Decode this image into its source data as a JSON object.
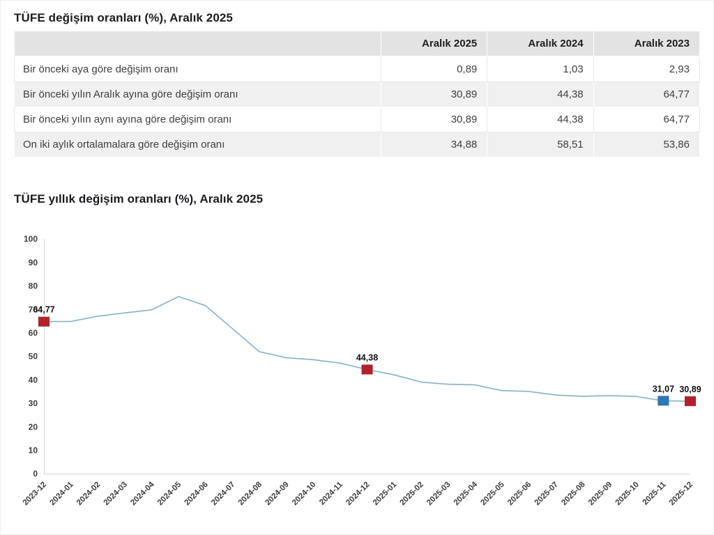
{
  "page": {
    "table_section_title": "TÜFE değişim oranları (%), Aralık 2025",
    "chart_section_title": "TÜFE yıllık değişim oranları (%), Aralık 2025"
  },
  "table": {
    "columns": [
      "",
      "Aralık 2025",
      "Aralık 2024",
      "Aralık 2023"
    ],
    "rows": [
      {
        "label": "Bir önceki aya göre değişim oranı",
        "values": [
          "0,89",
          "1,03",
          "2,93"
        ]
      },
      {
        "label": "Bir önceki yılın Aralık ayına göre değişim oranı",
        "values": [
          "30,89",
          "44,38",
          "64,77"
        ]
      },
      {
        "label": "Bir önceki yılın aynı ayına göre değişim oranı",
        "values": [
          "30,89",
          "44,38",
          "64,77"
        ]
      },
      {
        "label": "On iki aylık ortalamalara göre değişim oranı",
        "values": [
          "34,88",
          "58,51",
          "53,86"
        ]
      }
    ]
  },
  "chart_data": {
    "type": "line",
    "title": "TÜFE yıllık değişim oranları (%), Aralık 2025",
    "xlabel": "",
    "ylabel": "",
    "ylim": [
      0,
      100
    ],
    "ytick_step": 10,
    "grid": false,
    "legend": "none",
    "line_color": "#82b1d8",
    "x": [
      "2023-12",
      "2024-01",
      "2024-02",
      "2024-03",
      "2024-04",
      "2024-05",
      "2024-06",
      "2024-07",
      "2024-08",
      "2024-09",
      "2024-10",
      "2024-11",
      "2024-12",
      "2025-01",
      "2025-02",
      "2025-03",
      "2025-04",
      "2025-05",
      "2025-06",
      "2025-07",
      "2025-08",
      "2025-09",
      "2025-10",
      "2025-11",
      "2025-12"
    ],
    "values": [
      64.77,
      64.86,
      67.07,
      68.5,
      69.8,
      75.45,
      71.6,
      61.78,
      51.97,
      49.38,
      48.58,
      47.09,
      44.38,
      42.12,
      39.05,
      38.1,
      37.86,
      35.41,
      35.05,
      33.52,
      32.95,
      33.29,
      32.87,
      31.07,
      30.89
    ],
    "annotations": [
      {
        "x": "2023-12",
        "label": "64,77",
        "marker_color": "#b51f29"
      },
      {
        "x": "2024-12",
        "label": "44,38",
        "marker_color": "#b51f29"
      },
      {
        "x": "2025-11",
        "label": "31,07",
        "marker_color": "#2d77b5"
      },
      {
        "x": "2025-12",
        "label": "30,89",
        "marker_color": "#b51f29"
      }
    ]
  }
}
